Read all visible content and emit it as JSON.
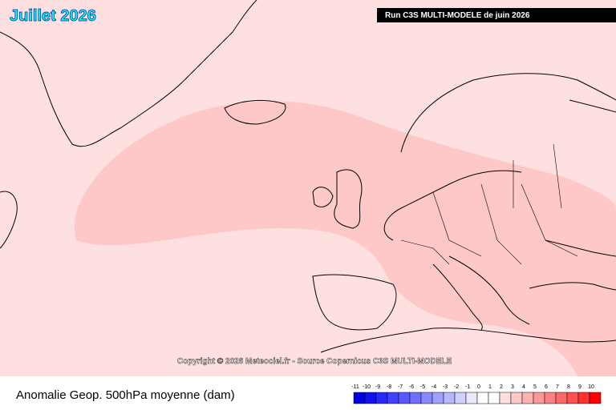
{
  "title": "Juillet 2026",
  "run_label": "Run C3S MULTI-MODELE de juin 2026",
  "copyright": "Copyright © 2026 Meteociel.fr - Source Copernicus C3S MULTI-MODELE",
  "caption": "Anomalie Geop. 500hPa moyenne (dam)",
  "legend": {
    "ticks": [
      -11,
      -10,
      -9,
      -8,
      -7,
      -6,
      -5,
      -4,
      -3,
      -2,
      -1,
      0,
      1,
      2,
      3,
      4,
      5,
      6,
      7,
      8,
      9,
      10
    ],
    "colors": [
      "#0000e0",
      "#1010f0",
      "#2828f8",
      "#4040ff",
      "#5858ff",
      "#7070ff",
      "#8888ff",
      "#a0a0ff",
      "#b8b8ff",
      "#d0d0ff",
      "#e8e8ff",
      "#ffffff",
      "#ffffff",
      "#ffe0e0",
      "#ffc8c8",
      "#ffb0b0",
      "#ff9898",
      "#ff8080",
      "#ff6868",
      "#ff5050",
      "#ff3030",
      "#ff0000"
    ]
  }
}
